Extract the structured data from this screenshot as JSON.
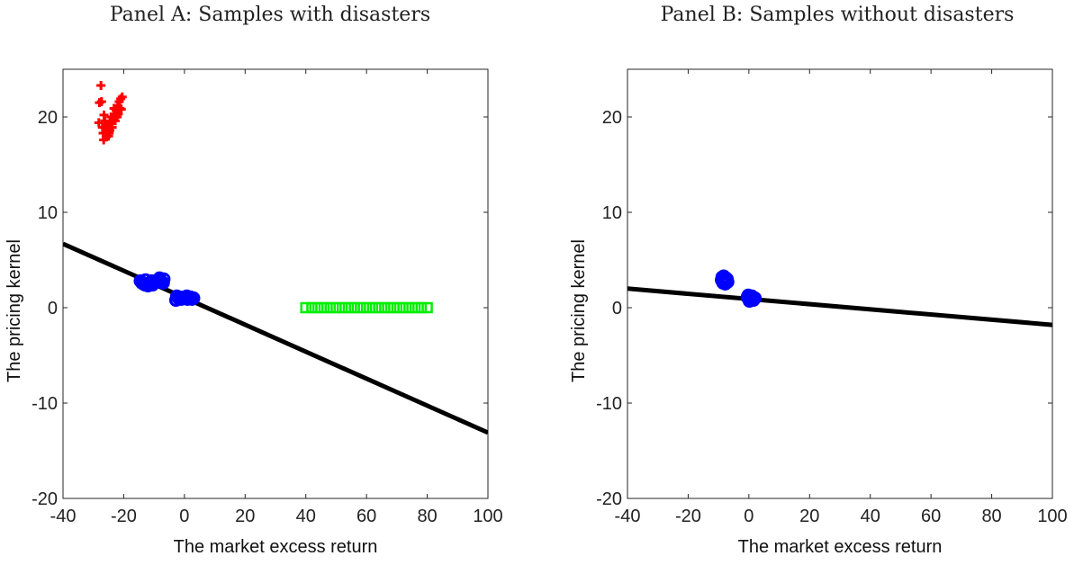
{
  "chart_data": [
    {
      "type": "scatter",
      "title": "Panel A: Samples with disasters",
      "xlabel": "The market excess return",
      "ylabel": "The pricing kernel",
      "xlim": [
        -40,
        100
      ],
      "ylim": [
        -20,
        25
      ],
      "xticks": [
        -40,
        -20,
        0,
        20,
        40,
        60,
        80,
        100
      ],
      "yticks": [
        -20,
        -10,
        0,
        10,
        20
      ],
      "grid": false,
      "series": [
        {
          "marker": "plus",
          "color": "#ff0000",
          "points": [
            [
              -27.5,
              23.3
            ],
            [
              -28.0,
              21.5
            ],
            [
              -27.3,
              21.6
            ],
            [
              -28.2,
              19.4
            ],
            [
              -26.5,
              20.2
            ],
            [
              -26.0,
              19.0
            ],
            [
              -25.5,
              18.4
            ],
            [
              -25.0,
              18.0
            ],
            [
              -24.6,
              18.6
            ],
            [
              -24.0,
              19.3
            ],
            [
              -23.5,
              19.8
            ],
            [
              -23.0,
              20.3
            ],
            [
              -22.5,
              20.7
            ],
            [
              -22.0,
              21.2
            ],
            [
              -21.5,
              21.6
            ],
            [
              -21.0,
              21.9
            ],
            [
              -20.5,
              22.1
            ],
            [
              -26.8,
              18.3
            ],
            [
              -25.8,
              17.9
            ],
            [
              -24.8,
              18.3
            ],
            [
              -23.8,
              18.9
            ],
            [
              -22.8,
              19.6
            ],
            [
              -21.8,
              20.3
            ],
            [
              -20.8,
              20.8
            ],
            [
              -26.2,
              19.6
            ],
            [
              -25.2,
              19.1
            ],
            [
              -24.2,
              20.0
            ],
            [
              -23.2,
              20.9
            ],
            [
              -27.0,
              18.9
            ],
            [
              -26.6,
              17.6
            ],
            [
              -25.6,
              18.9
            ],
            [
              -24.4,
              19.5
            ],
            [
              -22.2,
              20.0
            ],
            [
              -21.2,
              20.9
            ]
          ]
        },
        {
          "marker": "circle",
          "color": "#0000ff",
          "points": [
            [
              -14.5,
              2.8
            ],
            [
              -14.0,
              2.6
            ],
            [
              -13.5,
              2.5
            ],
            [
              -13.0,
              2.4
            ],
            [
              -12.5,
              2.5
            ],
            [
              -12.0,
              2.3
            ],
            [
              -11.5,
              2.4
            ],
            [
              -11.0,
              2.5
            ],
            [
              -10.5,
              2.4
            ],
            [
              -10.0,
              2.6
            ],
            [
              -9.5,
              2.7
            ],
            [
              -9.0,
              2.8
            ],
            [
              -8.5,
              2.9
            ],
            [
              -8.0,
              2.8
            ],
            [
              -7.5,
              2.7
            ],
            [
              -7.0,
              2.6
            ],
            [
              -6.8,
              3.0
            ],
            [
              -8.2,
              3.1
            ],
            [
              -12.8,
              2.9
            ],
            [
              -10.8,
              2.8
            ],
            [
              -2.5,
              1.2
            ],
            [
              -2.0,
              1.0
            ],
            [
              -1.5,
              1.1
            ],
            [
              -1.0,
              0.9
            ],
            [
              -0.5,
              1.0
            ],
            [
              0.0,
              1.1
            ],
            [
              0.5,
              1.0
            ],
            [
              1.0,
              0.9
            ],
            [
              1.5,
              1.0
            ],
            [
              2.0,
              1.1
            ],
            [
              2.5,
              0.9
            ],
            [
              3.0,
              1.0
            ],
            [
              -2.8,
              0.8
            ],
            [
              0.8,
              1.2
            ]
          ]
        },
        {
          "marker": "square",
          "color": "#00ee00",
          "points": [
            [
              40,
              0
            ],
            [
              42,
              0
            ],
            [
              44,
              0
            ],
            [
              46,
              0
            ],
            [
              48,
              0
            ],
            [
              50,
              0
            ],
            [
              52,
              0
            ],
            [
              54,
              0
            ],
            [
              56,
              0
            ],
            [
              58,
              0
            ],
            [
              60,
              0
            ],
            [
              62,
              0
            ],
            [
              64,
              0
            ],
            [
              66,
              0
            ],
            [
              68,
              0
            ],
            [
              70,
              0
            ],
            [
              72,
              0
            ],
            [
              74,
              0
            ],
            [
              76,
              0
            ],
            [
              78,
              0
            ],
            [
              80,
              0
            ]
          ]
        }
      ],
      "lines": [
        {
          "color": "#000000",
          "points": [
            [
              -40,
              6.7
            ],
            [
              100,
              -13.1
            ]
          ]
        }
      ]
    },
    {
      "type": "scatter",
      "title": "Panel B: Samples without disasters",
      "xlabel": "The market excess return",
      "ylabel": "The pricing kernel",
      "xlim": [
        -40,
        100
      ],
      "ylim": [
        -20,
        25
      ],
      "xticks": [
        -40,
        -20,
        0,
        20,
        40,
        60,
        80,
        100
      ],
      "yticks": [
        -20,
        -10,
        0,
        10,
        20
      ],
      "grid": false,
      "series": [
        {
          "marker": "circle",
          "color": "#0000ff",
          "points": [
            [
              -9.0,
              2.9
            ],
            [
              -8.5,
              2.6
            ],
            [
              -8.0,
              2.8
            ],
            [
              -7.5,
              3.1
            ],
            [
              -7.0,
              2.7
            ],
            [
              -8.8,
              3.2
            ],
            [
              -7.8,
              2.5
            ],
            [
              -7.2,
              3.0
            ],
            [
              -8.3,
              3.3
            ],
            [
              -0.5,
              1.1
            ],
            [
              0.0,
              0.9
            ],
            [
              0.5,
              1.0
            ],
            [
              1.0,
              1.2
            ],
            [
              1.5,
              0.8
            ],
            [
              2.0,
              1.0
            ],
            [
              0.2,
              0.7
            ],
            [
              1.2,
              1.1
            ],
            [
              -0.2,
              1.3
            ]
          ]
        }
      ],
      "lines": [
        {
          "color": "#000000",
          "points": [
            [
              -40,
              2.0
            ],
            [
              100,
              -1.8
            ]
          ]
        }
      ]
    }
  ]
}
